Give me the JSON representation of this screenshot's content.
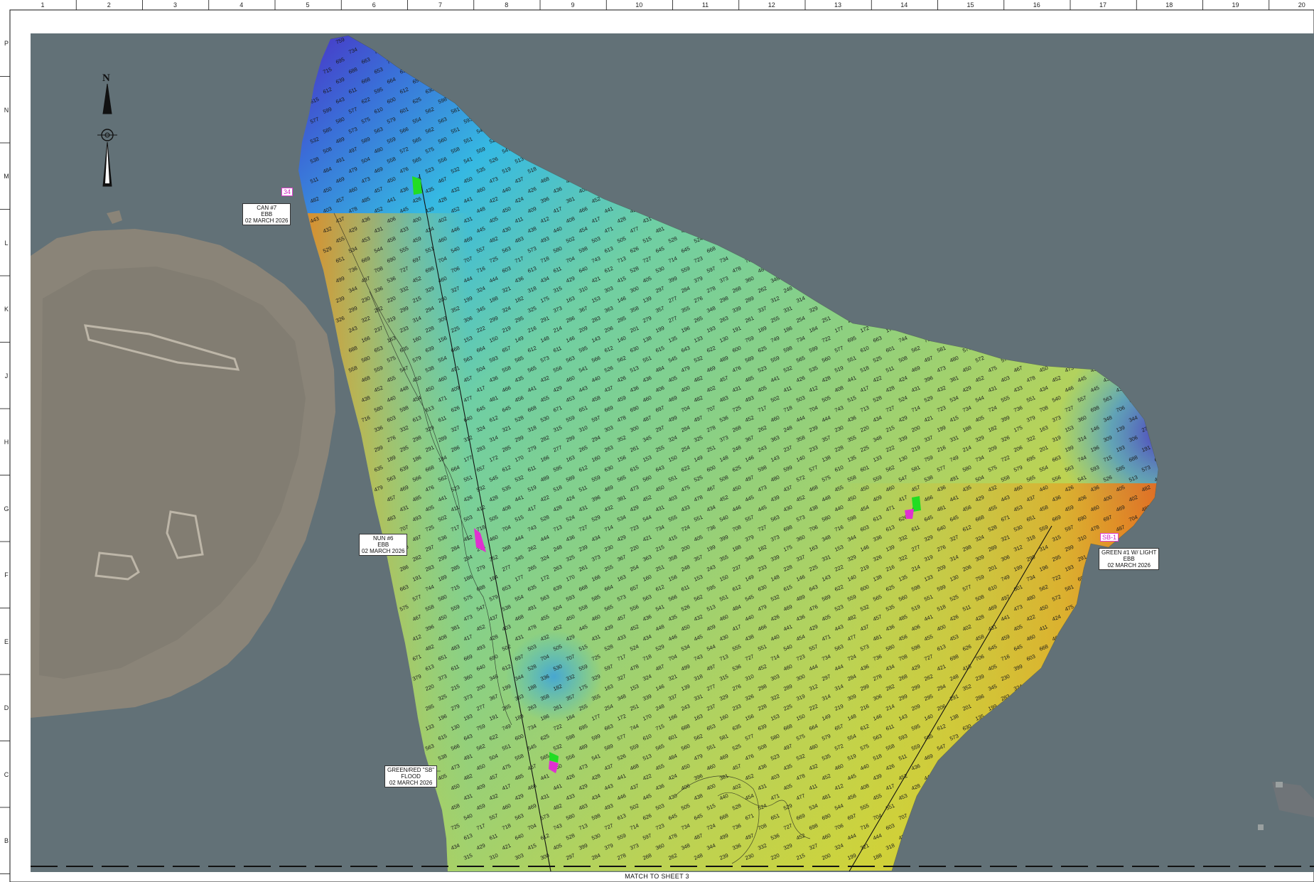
{
  "grid": {
    "columns": [
      "1",
      "2",
      "3",
      "4",
      "5",
      "6",
      "7",
      "8",
      "9",
      "10",
      "11",
      "12",
      "13",
      "14",
      "15",
      "16",
      "17",
      "18",
      "19",
      "20"
    ],
    "rows": [
      "P",
      "N",
      "M",
      "L",
      "K",
      "J",
      "H",
      "G",
      "F",
      "E",
      "D",
      "C",
      "B"
    ]
  },
  "north_arrow": {
    "label": "N"
  },
  "aids": [
    {
      "name": "CAN #7",
      "tide": "EBB",
      "date": "02 MARCH 2026"
    },
    {
      "name": "NUN #6",
      "tide": "EBB",
      "date": "02 MARCH 2026"
    },
    {
      "name": "GREEN #1 W/ LIGHT",
      "tide": "EBB",
      "date": "02 MARCH 2026"
    },
    {
      "name": "GREEN/RED \"SB\"",
      "tide": "FLOOD",
      "date": "02 MARCH 2026"
    }
  ],
  "tags": {
    "buoy_34": "34",
    "sb_1": "SB-1"
  },
  "match_line": {
    "label": "MATCH TO SHEET 3"
  },
  "colors": {
    "water": "#5f6c72",
    "land": "#8a8478",
    "deep": "#4a2fc4",
    "mid_deep": "#36b9e2",
    "mid": "#8fd07f",
    "shallow": "#cfd33a",
    "very_shallow": "#e89a22",
    "marker_green": "#22dd22",
    "marker_magenta": "#e030d0"
  },
  "soundings": [
    "759",
    "749",
    "734",
    "722",
    "695",
    "663",
    "744",
    "715",
    "688",
    "653",
    "635",
    "639",
    "668",
    "664",
    "657",
    "612",
    "611",
    "595",
    "612",
    "630",
    "615",
    "643",
    "622",
    "600",
    "625",
    "598",
    "599",
    "577",
    "610",
    "601",
    "562",
    "581",
    "577",
    "580",
    "575",
    "579",
    "554",
    "563",
    "593",
    "585",
    "573",
    "563",
    "566",
    "562",
    "551",
    "545",
    "532",
    "489",
    "589",
    "559",
    "565",
    "560",
    "551",
    "525",
    "508",
    "497",
    "480",
    "572",
    "575",
    "558",
    "559",
    "547",
    "538",
    "491",
    "504",
    "558",
    "565",
    "556",
    "541",
    "526",
    "513",
    "484",
    "479",
    "469",
    "476",
    "523",
    "532",
    "535",
    "519",
    "518",
    "511",
    "469",
    "473",
    "450",
    "475",
    "467",
    "450",
    "473",
    "437",
    "468",
    "455",
    "450",
    "460",
    "457",
    "436",
    "435",
    "432",
    "460",
    "440",
    "426",
    "436",
    "405",
    "482",
    "457",
    "485",
    "441",
    "426",
    "428",
    "441",
    "422",
    "424",
    "396",
    "381",
    "452",
    "403",
    "478",
    "452",
    "445",
    "439",
    "452",
    "448",
    "450",
    "409",
    "417",
    "466",
    "441",
    "429",
    "443",
    "437",
    "436",
    "406",
    "400",
    "402",
    "431",
    "405",
    "411",
    "412",
    "408",
    "417",
    "428",
    "431",
    "432",
    "429",
    "431",
    "433",
    "434",
    "446",
    "445",
    "430",
    "438",
    "440",
    "454",
    "471",
    "477",
    "481",
    "456",
    "455",
    "453",
    "458",
    "459",
    "460",
    "469",
    "482",
    "483",
    "493",
    "502",
    "503",
    "505",
    "515",
    "528",
    "524",
    "529",
    "534",
    "544",
    "555",
    "551",
    "540",
    "557",
    "563",
    "573",
    "580",
    "598",
    "613",
    "626",
    "645",
    "645",
    "668",
    "671",
    "651",
    "669",
    "690",
    "697",
    "704",
    "707",
    "725",
    "717",
    "718",
    "704",
    "743",
    "713",
    "727",
    "714",
    "723",
    "734",
    "724",
    "736",
    "708",
    "727",
    "698",
    "706",
    "716",
    "603",
    "613",
    "611",
    "640",
    "612",
    "528",
    "530",
    "559",
    "597",
    "478",
    "487",
    "499",
    "497",
    "536",
    "452",
    "460",
    "444",
    "444",
    "436",
    "434",
    "429",
    "421",
    "415",
    "405",
    "399",
    "379",
    "373",
    "360",
    "348",
    "344",
    "336",
    "332",
    "329",
    "327",
    "324",
    "321",
    "318",
    "315",
    "310",
    "303",
    "300",
    "297",
    "284",
    "278",
    "268",
    "262",
    "248",
    "239",
    "230",
    "220",
    "215",
    "200",
    "199",
    "188",
    "182",
    "175",
    "163",
    "153",
    "146",
    "139",
    "277",
    "276",
    "298",
    "289",
    "312",
    "314",
    "299",
    "282",
    "299",
    "294",
    "352",
    "345",
    "324",
    "325",
    "373",
    "367",
    "363",
    "358",
    "357",
    "355",
    "348",
    "339",
    "337",
    "331",
    "329",
    "326",
    "322",
    "319",
    "314",
    "309",
    "306",
    "299",
    "295",
    "291",
    "286",
    "283",
    "285",
    "279",
    "277",
    "265",
    "263",
    "261",
    "255",
    "254",
    "251",
    "248",
    "243",
    "237",
    "233",
    "228",
    "225",
    "222",
    "219",
    "216",
    "214",
    "209",
    "206",
    "201",
    "199",
    "196",
    "193",
    "191",
    "189",
    "186",
    "184",
    "177",
    "172",
    "170",
    "166",
    "163",
    "160",
    "156",
    "153",
    "150",
    "149",
    "148",
    "146",
    "143",
    "140",
    "138",
    "135",
    "133",
    "130"
  ]
}
